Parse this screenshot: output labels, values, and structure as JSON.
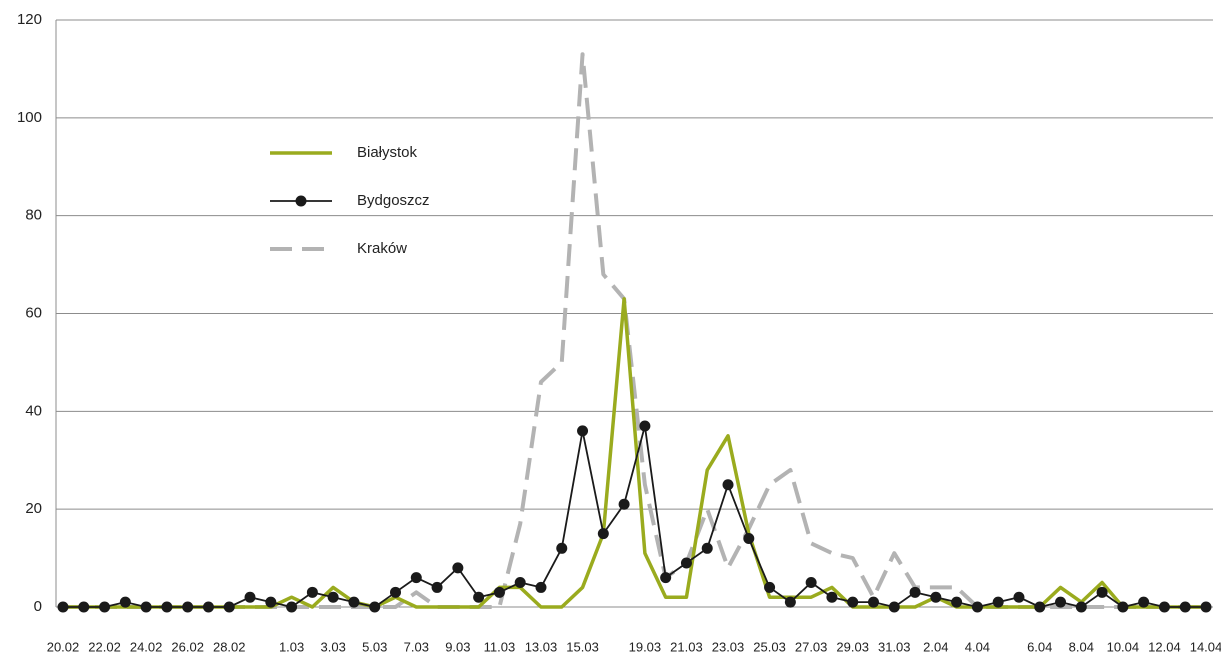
{
  "chart_data": {
    "type": "line",
    "categories": [
      "20.02",
      null,
      "22.02",
      null,
      "24.02",
      null,
      "26.02",
      null,
      "28.02",
      null,
      null,
      "1.03",
      null,
      "3.03",
      null,
      "5.03",
      null,
      "7.03",
      null,
      "9.03",
      null,
      "11.03",
      null,
      "13.03",
      null,
      "15.03",
      null,
      null,
      "19.03",
      null,
      "21.03",
      null,
      "23.03",
      null,
      "25.03",
      null,
      "27.03",
      null,
      "29.03",
      null,
      "31.03",
      null,
      "2.04",
      null,
      "4.04",
      null,
      null,
      "6.04",
      null,
      "8.04",
      null,
      "10.04",
      null,
      "12.04",
      null,
      "14.04"
    ],
    "series": [
      {
        "name": "Białystok",
        "color": "#9aab1e",
        "style": "solid",
        "marker": false,
        "values": [
          0,
          0,
          0,
          0,
          0,
          0,
          0,
          0,
          0,
          0,
          0,
          2,
          0,
          4,
          1,
          0,
          2,
          0,
          0,
          0,
          0,
          4,
          4,
          0,
          0,
          4,
          15,
          63,
          11,
          2,
          2,
          28,
          35,
          15,
          2,
          2,
          2,
          4,
          0,
          0,
          0,
          0,
          2,
          0,
          0,
          0,
          0,
          0,
          4,
          1,
          5,
          0,
          0,
          0,
          0,
          0
        ]
      },
      {
        "name": "Bydgoszcz",
        "color": "#1a1a1a",
        "style": "solid",
        "marker": true,
        "values": [
          0,
          0,
          0,
          1,
          0,
          0,
          0,
          0,
          0,
          2,
          1,
          0,
          3,
          2,
          1,
          0,
          3,
          6,
          4,
          8,
          2,
          3,
          5,
          4,
          12,
          36,
          15,
          21,
          37,
          6,
          9,
          12,
          25,
          14,
          4,
          1,
          5,
          2,
          1,
          1,
          0,
          3,
          2,
          1,
          0,
          1,
          2,
          0,
          1,
          0,
          3,
          0,
          1,
          0,
          0,
          0
        ]
      },
      {
        "name": "Kraków",
        "color": "#b3b3b3",
        "style": "dashed",
        "marker": false,
        "values": [
          0,
          0,
          0,
          0,
          0,
          0,
          0,
          0,
          0,
          0,
          0,
          0,
          0,
          0,
          0,
          0,
          0,
          3,
          0,
          0,
          0,
          0,
          17,
          46,
          50,
          113,
          68,
          63,
          25,
          6,
          9,
          20,
          8,
          16,
          25,
          28,
          13,
          11,
          10,
          2,
          11,
          4,
          4,
          4,
          0,
          0,
          0,
          0,
          0,
          0,
          0,
          0,
          0,
          0,
          0,
          0
        ]
      }
    ],
    "ylim": [
      0,
      120
    ],
    "yticks": [
      0,
      20,
      40,
      60,
      80,
      100,
      120
    ],
    "grid": true
  }
}
